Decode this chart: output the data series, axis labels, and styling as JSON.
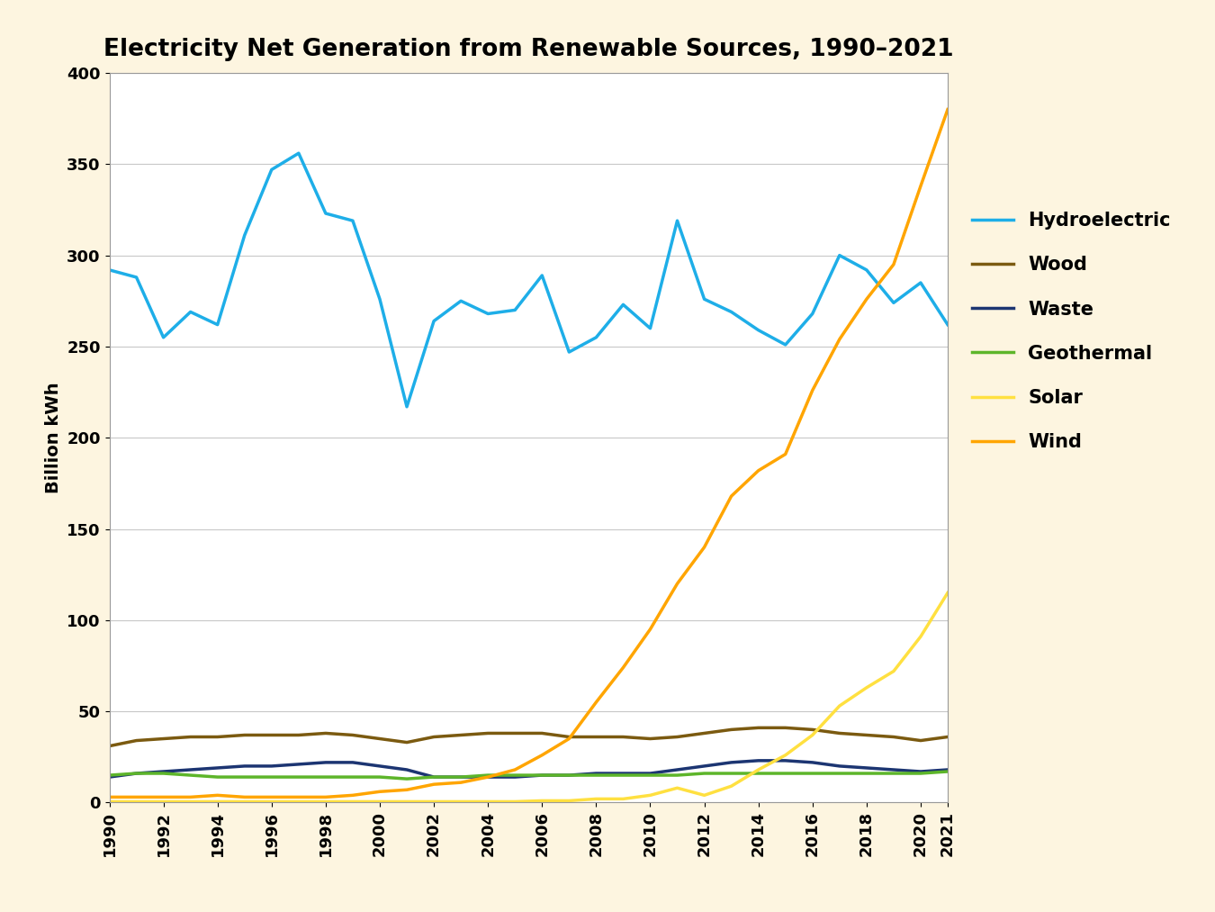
{
  "title": "Electricity Net Generation from Renewable Sources, 1990–2021",
  "ylabel": "Billion kWh",
  "background_color": "#fdf5e0",
  "plot_background": "#ffffff",
  "years": [
    1990,
    1991,
    1992,
    1993,
    1994,
    1995,
    1996,
    1997,
    1998,
    1999,
    2000,
    2001,
    2002,
    2003,
    2004,
    2005,
    2006,
    2007,
    2008,
    2009,
    2010,
    2011,
    2012,
    2013,
    2014,
    2015,
    2016,
    2017,
    2018,
    2019,
    2020,
    2021
  ],
  "hydroelectric": [
    292,
    288,
    255,
    269,
    262,
    311,
    347,
    356,
    323,
    319,
    276,
    217,
    264,
    275,
    268,
    270,
    289,
    247,
    255,
    273,
    260,
    319,
    276,
    269,
    259,
    251,
    268,
    300,
    292,
    274,
    285,
    262
  ],
  "wood": [
    31,
    34,
    35,
    36,
    36,
    37,
    37,
    37,
    38,
    37,
    35,
    33,
    36,
    37,
    38,
    38,
    38,
    36,
    36,
    36,
    35,
    36,
    38,
    40,
    41,
    41,
    40,
    38,
    37,
    36,
    34,
    36
  ],
  "waste": [
    14,
    16,
    17,
    18,
    19,
    20,
    20,
    21,
    22,
    22,
    20,
    18,
    14,
    14,
    14,
    14,
    15,
    15,
    16,
    16,
    16,
    18,
    20,
    22,
    23,
    23,
    22,
    20,
    19,
    18,
    17,
    18
  ],
  "geothermal": [
    15,
    16,
    16,
    15,
    14,
    14,
    14,
    14,
    14,
    14,
    14,
    13,
    14,
    14,
    15,
    15,
    15,
    15,
    15,
    15,
    15,
    15,
    16,
    16,
    16,
    16,
    16,
    16,
    16,
    16,
    16,
    17
  ],
  "solar": [
    0.5,
    0.5,
    0.5,
    0.5,
    0.5,
    0.5,
    0.5,
    0.5,
    0.5,
    0.5,
    0.5,
    0.5,
    0.5,
    0.5,
    0.5,
    0.5,
    1,
    1,
    2,
    2,
    4,
    8,
    4,
    9,
    18,
    26,
    37,
    53,
    63,
    72,
    91,
    115
  ],
  "wind": [
    3,
    3,
    3,
    3,
    4,
    3,
    3,
    3,
    3,
    4,
    6,
    7,
    10,
    11,
    14,
    18,
    26,
    35,
    55,
    74,
    95,
    120,
    140,
    168,
    182,
    191,
    226,
    254,
    276,
    295,
    338,
    380
  ],
  "hydroelectric_color": "#1EAEE8",
  "wood_color": "#7B5A10",
  "waste_color": "#1C3572",
  "geothermal_color": "#5DB52A",
  "solar_color": "#FFE040",
  "wind_color": "#FFA500",
  "ylim": [
    0,
    400
  ],
  "yticks": [
    0,
    50,
    100,
    150,
    200,
    250,
    300,
    350,
    400
  ],
  "line_width": 2.5,
  "title_fontsize": 19,
  "axis_label_fontsize": 14,
  "legend_fontsize": 15,
  "tick_fontsize": 13
}
